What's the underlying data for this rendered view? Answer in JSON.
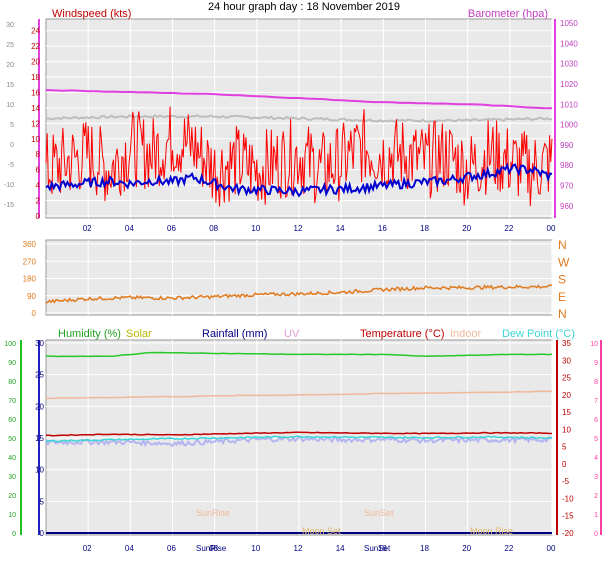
{
  "title": "24 hour graph day : 18 November 2019",
  "colors": {
    "panel_bg": "#e9e9e9",
    "grid": "#ffffff",
    "wind": "#ff0000",
    "wind_avg": "#0000d0",
    "baro": "#e040e0",
    "baro_alt": "#bdbdbd",
    "dir": "#e07a1e",
    "humidity": "#28c828",
    "solar": "#b8b800",
    "rain": "#000080",
    "uv": "#e09bd8",
    "temp": "#c00000",
    "indoor": "#f0b89a",
    "dew": "#3ad6d6",
    "frame_left_green": "#20c020",
    "frame_right_pink": "#ff40a0",
    "frame_purple": "#c040c0"
  },
  "x_ticks": [
    "02",
    "04",
    "06",
    "08",
    "10",
    "12",
    "14",
    "16",
    "18",
    "20",
    "22",
    "00"
  ],
  "chart_data": [
    {
      "type": "line",
      "panel": "wind-baro",
      "legend_left": "Windspeed (kts)",
      "legend_right": "Barometer (hpa)",
      "left_axis_labels": [
        "24",
        "22",
        "20",
        "18",
        "16",
        "14",
        "12",
        "10",
        "8",
        "6",
        "4",
        "2",
        "0"
      ],
      "outer_axis_labels": [
        "30",
        "25",
        "20",
        "15",
        "10",
        "5",
        "0",
        "-5",
        "-10",
        "-15"
      ],
      "right_axis_labels": [
        "1050",
        "1040",
        "1030",
        "1020",
        "1010",
        "1000",
        "990",
        "980",
        "970",
        "960"
      ],
      "series": [
        {
          "key": "gust",
          "color": "#ff0000",
          "axis": "wind",
          "x_hours": [
            0,
            1,
            2,
            3,
            4,
            5,
            6,
            7,
            8,
            9,
            10,
            11,
            12,
            13,
            14,
            15,
            16,
            17,
            18,
            19,
            20,
            21,
            22,
            23,
            24
          ],
          "values": [
            6,
            7,
            8,
            6,
            9,
            8,
            10,
            9,
            6,
            7,
            6,
            7,
            8,
            6,
            7,
            9,
            8,
            8,
            7,
            8,
            6,
            8,
            7,
            6,
            7
          ]
        },
        {
          "key": "avg",
          "color": "#0000d0",
          "axis": "wind",
          "x_hours": [
            0,
            1,
            2,
            3,
            4,
            5,
            6,
            7,
            8,
            9,
            10,
            11,
            12,
            13,
            14,
            15,
            16,
            17,
            18,
            19,
            20,
            21,
            22,
            23,
            24
          ],
          "values": [
            3.8,
            4,
            4.3,
            4.5,
            4.2,
            4.6,
            4.4,
            5,
            4.2,
            3.5,
            3.4,
            3.3,
            3.2,
            3.4,
            3.5,
            3.7,
            3.9,
            4.2,
            4.4,
            4.6,
            5.1,
            5.5,
            6.1,
            6,
            5.1
          ]
        },
        {
          "key": "baro",
          "color": "#e040e0",
          "axis": "baro",
          "x_hours": [
            0,
            4,
            8,
            12,
            16,
            20,
            24
          ],
          "values": [
            1017,
            1016,
            1015,
            1013,
            1011,
            1010,
            1008
          ]
        },
        {
          "key": "baro2",
          "color": "#bdbdbd",
          "axis": "baro",
          "x_hours": [
            0,
            4,
            8,
            12,
            16,
            20,
            24
          ],
          "values": [
            1003,
            1004,
            1004,
            1003,
            1002,
            1002,
            1003
          ]
        }
      ],
      "wind_ylim": [
        0,
        25
      ],
      "baro_ylim": [
        955,
        1050
      ]
    },
    {
      "type": "line",
      "panel": "direction",
      "left_axis_labels": [
        "360",
        "270",
        "180",
        "90",
        "0"
      ],
      "right_axis_labels": [
        "N",
        "W",
        "S",
        "E",
        "N"
      ],
      "series": [
        {
          "key": "dir",
          "color": "#e07a1e",
          "x_hours": [
            0,
            2,
            4,
            6,
            8,
            10,
            12,
            14,
            16,
            18,
            20,
            22,
            24
          ],
          "values": [
            58,
            75,
            80,
            78,
            85,
            95,
            100,
            108,
            122,
            132,
            132,
            136,
            138
          ]
        }
      ],
      "ylim": [
        0,
        360
      ]
    },
    {
      "type": "line",
      "panel": "temp-hum",
      "legends": [
        "Humidity (%)",
        "Solar",
        "Rainfall (mm)",
        "UV",
        "Temperature (°C)",
        "Indoor",
        "Dew Point (°C)"
      ],
      "hum_axis_labels": [
        "100",
        "90",
        "80",
        "70",
        "60",
        "50",
        "40",
        "30",
        "20",
        "10",
        "0"
      ],
      "rain_axis_labels": [
        "30",
        "25",
        "20",
        "15",
        "10",
        "5",
        "0"
      ],
      "temp_axis_labels": [
        "35",
        "30",
        "25",
        "20",
        "15",
        "10",
        "5",
        "0",
        "-5",
        "-10",
        "-15",
        "-20"
      ],
      "uv_axis_labels": [
        "10",
        "9",
        "8",
        "7",
        "6",
        "5",
        "4",
        "3",
        "2",
        "1",
        "0"
      ],
      "annotations": [
        "SunRise",
        "SunSet",
        "Moon Set",
        "Moon Rise"
      ],
      "series": [
        {
          "key": "humidity",
          "color": "#28c828",
          "axis": "hum",
          "x_hours": [
            0,
            3,
            5,
            12,
            16,
            18,
            22,
            24
          ],
          "values": [
            93,
            93,
            95,
            94,
            94,
            93,
            94,
            94
          ]
        },
        {
          "key": "indoor",
          "color": "#f0b89a",
          "axis": "temp",
          "x_hours": [
            0,
            6,
            12,
            18,
            24
          ],
          "values": [
            19,
            19.5,
            20,
            20.5,
            21
          ]
        },
        {
          "key": "temp",
          "color": "#c00000",
          "axis": "temp",
          "x_hours": [
            0,
            3,
            6,
            9,
            12,
            15,
            18,
            21,
            24
          ],
          "values": [
            8.2,
            8.6,
            8.4,
            8.8,
            9.1,
            8.9,
            8.8,
            9,
            8.9
          ]
        },
        {
          "key": "dew",
          "color": "#3ad6d6",
          "axis": "temp",
          "x_hours": [
            0,
            3,
            6,
            9,
            12,
            15,
            18,
            21,
            24
          ],
          "values": [
            6.6,
            7,
            7.3,
            7.6,
            7.9,
            7.7,
            7.6,
            7.8,
            7.5
          ]
        },
        {
          "key": "dew_indoor",
          "color": "#b4b4f0",
          "axis": "temp",
          "x_hours": [
            0,
            2,
            4,
            6,
            8,
            10,
            12,
            14,
            16,
            18,
            20,
            22,
            24
          ],
          "values": [
            6.2,
            6.4,
            6.3,
            5.9,
            6.4,
            7.1,
            7.3,
            7.0,
            7.1,
            6.8,
            6.9,
            7.0,
            7.0
          ]
        },
        {
          "key": "rain",
          "color": "#000080",
          "axis": "rain",
          "x_hours": [
            0,
            24
          ],
          "values": [
            0,
            0
          ]
        }
      ],
      "temp_ylim": [
        -20,
        35
      ],
      "hum_ylim": [
        0,
        100
      ]
    }
  ]
}
